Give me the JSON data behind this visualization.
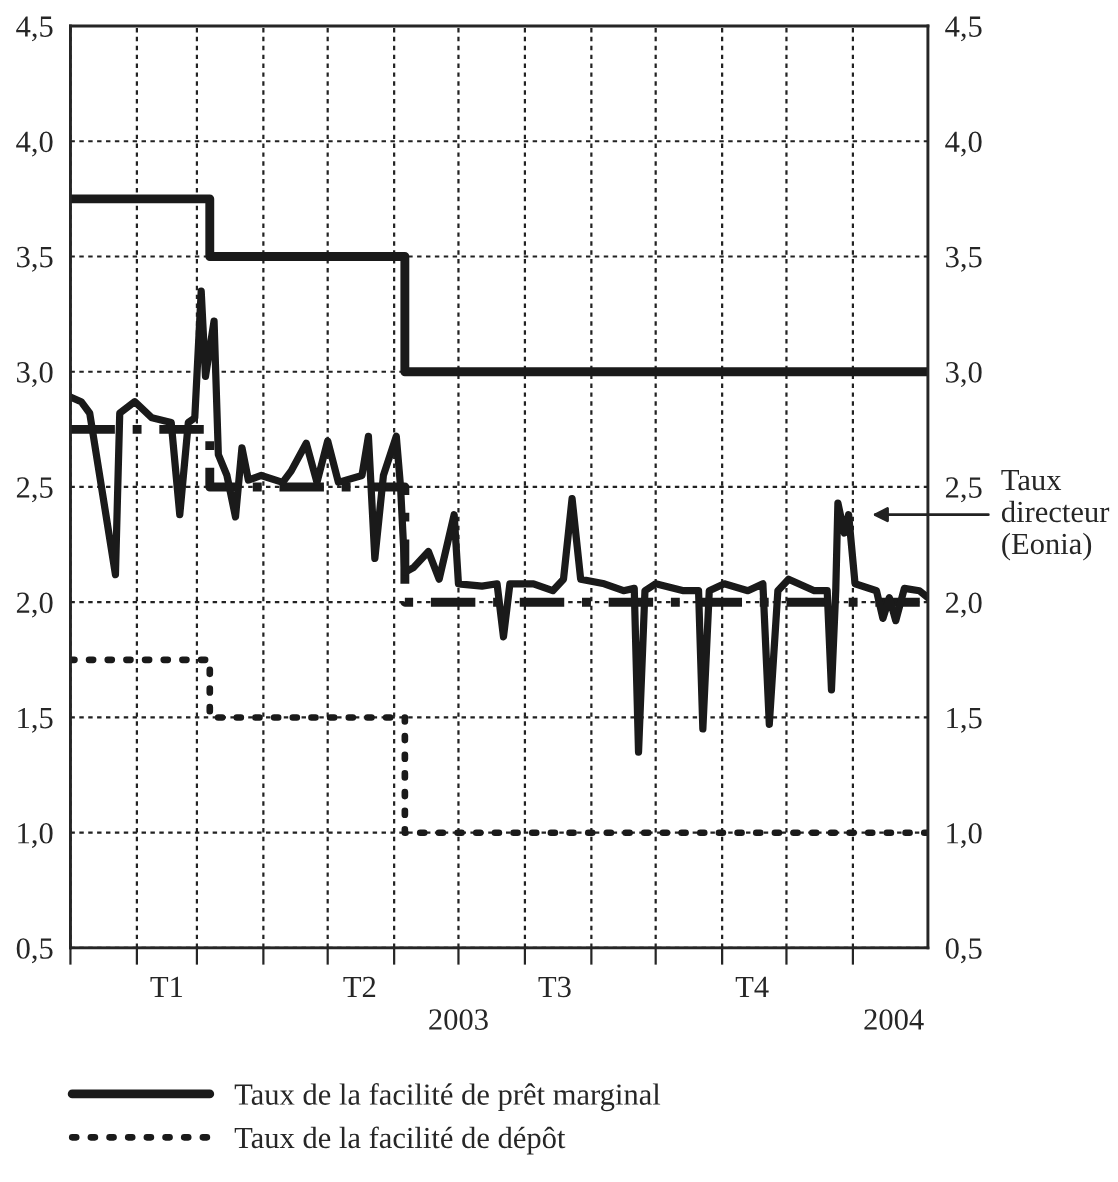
{
  "chart_data": {
    "type": "line",
    "x2ticks": [
      {
        "value": "2003-07-01",
        "label": "2003"
      },
      {
        "value": "2004-01-20",
        "label": "2004"
      }
    ],
    "x2lim": [
      "2003-01-01",
      "2004-02-05"
    ],
    "xlim": [
      "2003-01-01",
      "2004-02-05"
    ],
    "xticks": [
      {
        "value": "2003-01-01",
        "label": null
      },
      {
        "value": "2003-02-01",
        "label": null
      },
      {
        "value": "2003-03-01",
        "label": null
      },
      {
        "value": "2003-04-01",
        "label": null
      },
      {
        "value": "2003-05-01",
        "label": null
      },
      {
        "value": "2003-06-01",
        "label": null
      },
      {
        "value": "2003-07-01",
        "label": null
      },
      {
        "value": "2003-08-01",
        "label": null
      },
      {
        "value": "2003-09-01",
        "label": null
      },
      {
        "value": "2003-10-01",
        "label": null
      },
      {
        "value": "2003-11-01",
        "label": null
      },
      {
        "value": "2003-12-01",
        "label": null
      },
      {
        "value": "2004-01-01",
        "label": null
      },
      {
        "value": "2003-02-15",
        "label": "T1"
      },
      {
        "value": "2003-05-16",
        "label": "T2"
      },
      {
        "value": "2003-08-15",
        "label": "T3"
      },
      {
        "value": "2003-11-15",
        "label": "T4"
      }
    ],
    "ylim": [
      0.5,
      4.5
    ],
    "yticks": [
      {
        "value": 0.5,
        "label": "0,5"
      },
      {
        "value": 1.0,
        "label": "1,0"
      },
      {
        "value": 1.5,
        "label": "1,5"
      },
      {
        "value": 2.0,
        "label": "2,0"
      },
      {
        "value": 2.5,
        "label": "2,5"
      },
      {
        "value": 3.0,
        "label": "3,0"
      },
      {
        "value": 3.5,
        "label": "3,5"
      },
      {
        "value": 4.0,
        "label": "4,0"
      },
      {
        "value": 4.5,
        "label": "4,5"
      }
    ],
    "y2lim": [
      0.5,
      4.5
    ],
    "y2ticks": [
      {
        "value": 0.5,
        "label": "0,5"
      },
      {
        "value": 1.0,
        "label": "1,0"
      },
      {
        "value": 1.5,
        "label": "1,5"
      },
      {
        "value": 2.0,
        "label": "2,0"
      },
      {
        "value": 2.5,
        "label": "2,5"
      },
      {
        "value": 3.0,
        "label": "3,0"
      },
      {
        "value": 3.5,
        "label": "3,5"
      },
      {
        "value": 4.0,
        "label": "4,0"
      },
      {
        "value": 4.5,
        "label": "4,5"
      }
    ],
    "grid": true,
    "legend": "bottom",
    "annotations": [
      "Taux\ndirecteur\n(Eonia)"
    ],
    "series": [
      {
        "name": "Taux de la facilité de prêt marginal",
        "type": "step",
        "color": "#1a1a1a",
        "line_style": "solid",
        "x": [
          "2003-01-01",
          "2003-03-07",
          "2003-06-06",
          "2004-02-05"
        ],
        "values": [
          3.75,
          3.5,
          3.0,
          3.0
        ]
      },
      {
        "name": "Taux de la facilité de dépôt",
        "type": "step",
        "color": "#1a1a1a",
        "line_style": "dotted",
        "x": [
          "2003-01-01",
          "2003-03-07",
          "2003-06-06",
          "2004-02-05"
        ],
        "values": [
          1.75,
          1.5,
          1.0,
          1.0
        ]
      },
      {
        "type": "step",
        "color": "#1a1a1a",
        "line_style": "dashdot",
        "x": [
          "2003-01-01",
          "2003-03-07",
          "2003-06-06",
          "2004-02-05"
        ],
        "values": [
          2.75,
          2.5,
          2.0,
          2.0
        ]
      },
      {
        "type": "line",
        "color": "#1a1a1a",
        "line_style": "solid",
        "x": [
          "2003-01-01",
          "2003-01-06",
          "2003-01-10",
          "2003-01-22",
          "2003-01-24",
          "2003-01-31",
          "2003-02-08",
          "2003-02-17",
          "2003-02-21",
          "2003-02-25",
          "2003-02-28",
          "2003-03-03",
          "2003-03-05",
          "2003-03-09",
          "2003-03-11",
          "2003-03-15",
          "2003-03-19",
          "2003-03-22",
          "2003-03-25",
          "2003-03-31",
          "2003-04-10",
          "2003-04-14",
          "2003-04-21",
          "2003-04-26",
          "2003-05-01",
          "2003-05-06",
          "2003-05-17",
          "2003-05-20",
          "2003-05-23",
          "2003-05-27",
          "2003-06-02",
          "2003-06-04",
          "2003-06-06",
          "2003-06-10",
          "2003-06-17",
          "2003-06-22",
          "2003-06-29",
          "2003-07-01",
          "2003-07-12",
          "2003-07-19",
          "2003-07-22",
          "2003-07-25",
          "2003-08-05",
          "2003-08-14",
          "2003-08-19",
          "2003-08-23",
          "2003-08-27",
          "2003-09-07",
          "2003-09-16",
          "2003-09-21",
          "2003-09-23",
          "2003-09-26",
          "2003-10-01",
          "2003-10-14",
          "2003-10-21",
          "2003-10-23",
          "2003-10-26",
          "2003-11-02",
          "2003-11-13",
          "2003-11-20",
          "2003-11-23",
          "2003-11-27",
          "2003-12-02",
          "2003-12-14",
          "2003-12-20",
          "2003-12-22",
          "2003-12-24",
          "2003-12-25",
          "2003-12-28",
          "2003-12-30",
          "2004-01-02",
          "2004-01-12",
          "2004-01-15",
          "2004-01-18",
          "2004-01-21",
          "2004-01-25",
          "2004-02-01",
          "2004-02-05"
        ],
        "values": [
          2.89,
          2.87,
          2.82,
          2.12,
          2.82,
          2.87,
          2.8,
          2.78,
          2.38,
          2.78,
          2.8,
          3.35,
          2.98,
          3.22,
          2.64,
          2.55,
          2.37,
          2.67,
          2.53,
          2.55,
          2.52,
          2.57,
          2.69,
          2.52,
          2.7,
          2.52,
          2.55,
          2.72,
          2.19,
          2.55,
          2.72,
          2.5,
          2.13,
          2.15,
          2.22,
          2.1,
          2.38,
          2.08,
          2.07,
          2.08,
          1.85,
          2.08,
          2.08,
          2.05,
          2.1,
          2.45,
          2.1,
          2.08,
          2.05,
          2.06,
          1.35,
          2.05,
          2.08,
          2.05,
          2.05,
          1.45,
          2.05,
          2.08,
          2.05,
          2.08,
          1.47,
          2.05,
          2.1,
          2.05,
          2.05,
          1.62,
          2.05,
          2.43,
          2.3,
          2.38,
          2.08,
          2.05,
          1.93,
          2.02,
          1.92,
          2.06,
          2.05,
          2.02
        ]
      }
    ]
  }
}
